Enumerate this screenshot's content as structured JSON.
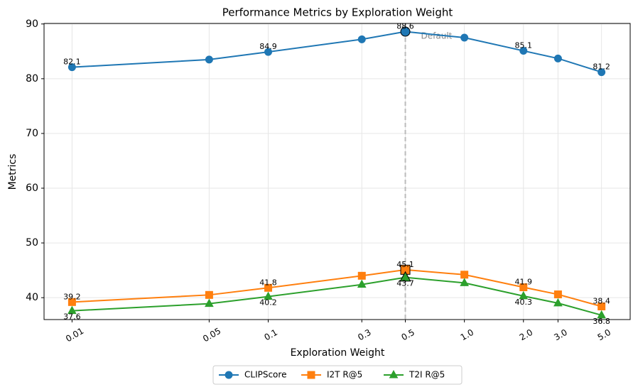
{
  "chart_data": {
    "type": "line",
    "title": "Performance Metrics by Exploration Weight",
    "x_label": "Exploration Weight",
    "y_label": "Metrics",
    "x": [
      0.01,
      0.05,
      0.1,
      0.3,
      0.5,
      1.0,
      2.0,
      3.0,
      5.0
    ],
    "series": [
      {
        "name": "CLIPScore",
        "color": "#1f77b4",
        "marker": "circle",
        "values": [
          82.1,
          83.5,
          84.9,
          87.2,
          88.6,
          87.5,
          85.1,
          83.7,
          81.2
        ]
      },
      {
        "name": "I2T R@5",
        "color": "#ff7f0e",
        "marker": "square",
        "values": [
          39.2,
          40.5,
          41.8,
          44.0,
          45.1,
          44.2,
          41.9,
          40.6,
          38.4
        ]
      },
      {
        "name": "T2I R@5",
        "color": "#2ca02c",
        "marker": "triangle",
        "values": [
          37.6,
          38.9,
          40.2,
          42.4,
          43.7,
          42.7,
          40.3,
          39.0,
          36.8
        ]
      }
    ],
    "label_indices": [
      0,
      2,
      4,
      6,
      8
    ],
    "highlight_x": 0.5,
    "annotation": "Default",
    "xscale": "log",
    "xlim": [
      0.0072,
      7.0
    ],
    "xticks": [
      0.01,
      0.05,
      0.1,
      0.3,
      0.5,
      {
        "value": 1,
        "label": "1.0"
      },
      {
        "value": 2,
        "label": "2.0"
      },
      {
        "value": 3,
        "label": "3.0"
      },
      {
        "value": 5,
        "label": "5.0"
      }
    ],
    "ylim": [
      36,
      90.1
    ],
    "yticks": [
      40,
      50,
      60,
      70,
      80,
      90
    ],
    "grid": true,
    "legend": "bottom"
  }
}
